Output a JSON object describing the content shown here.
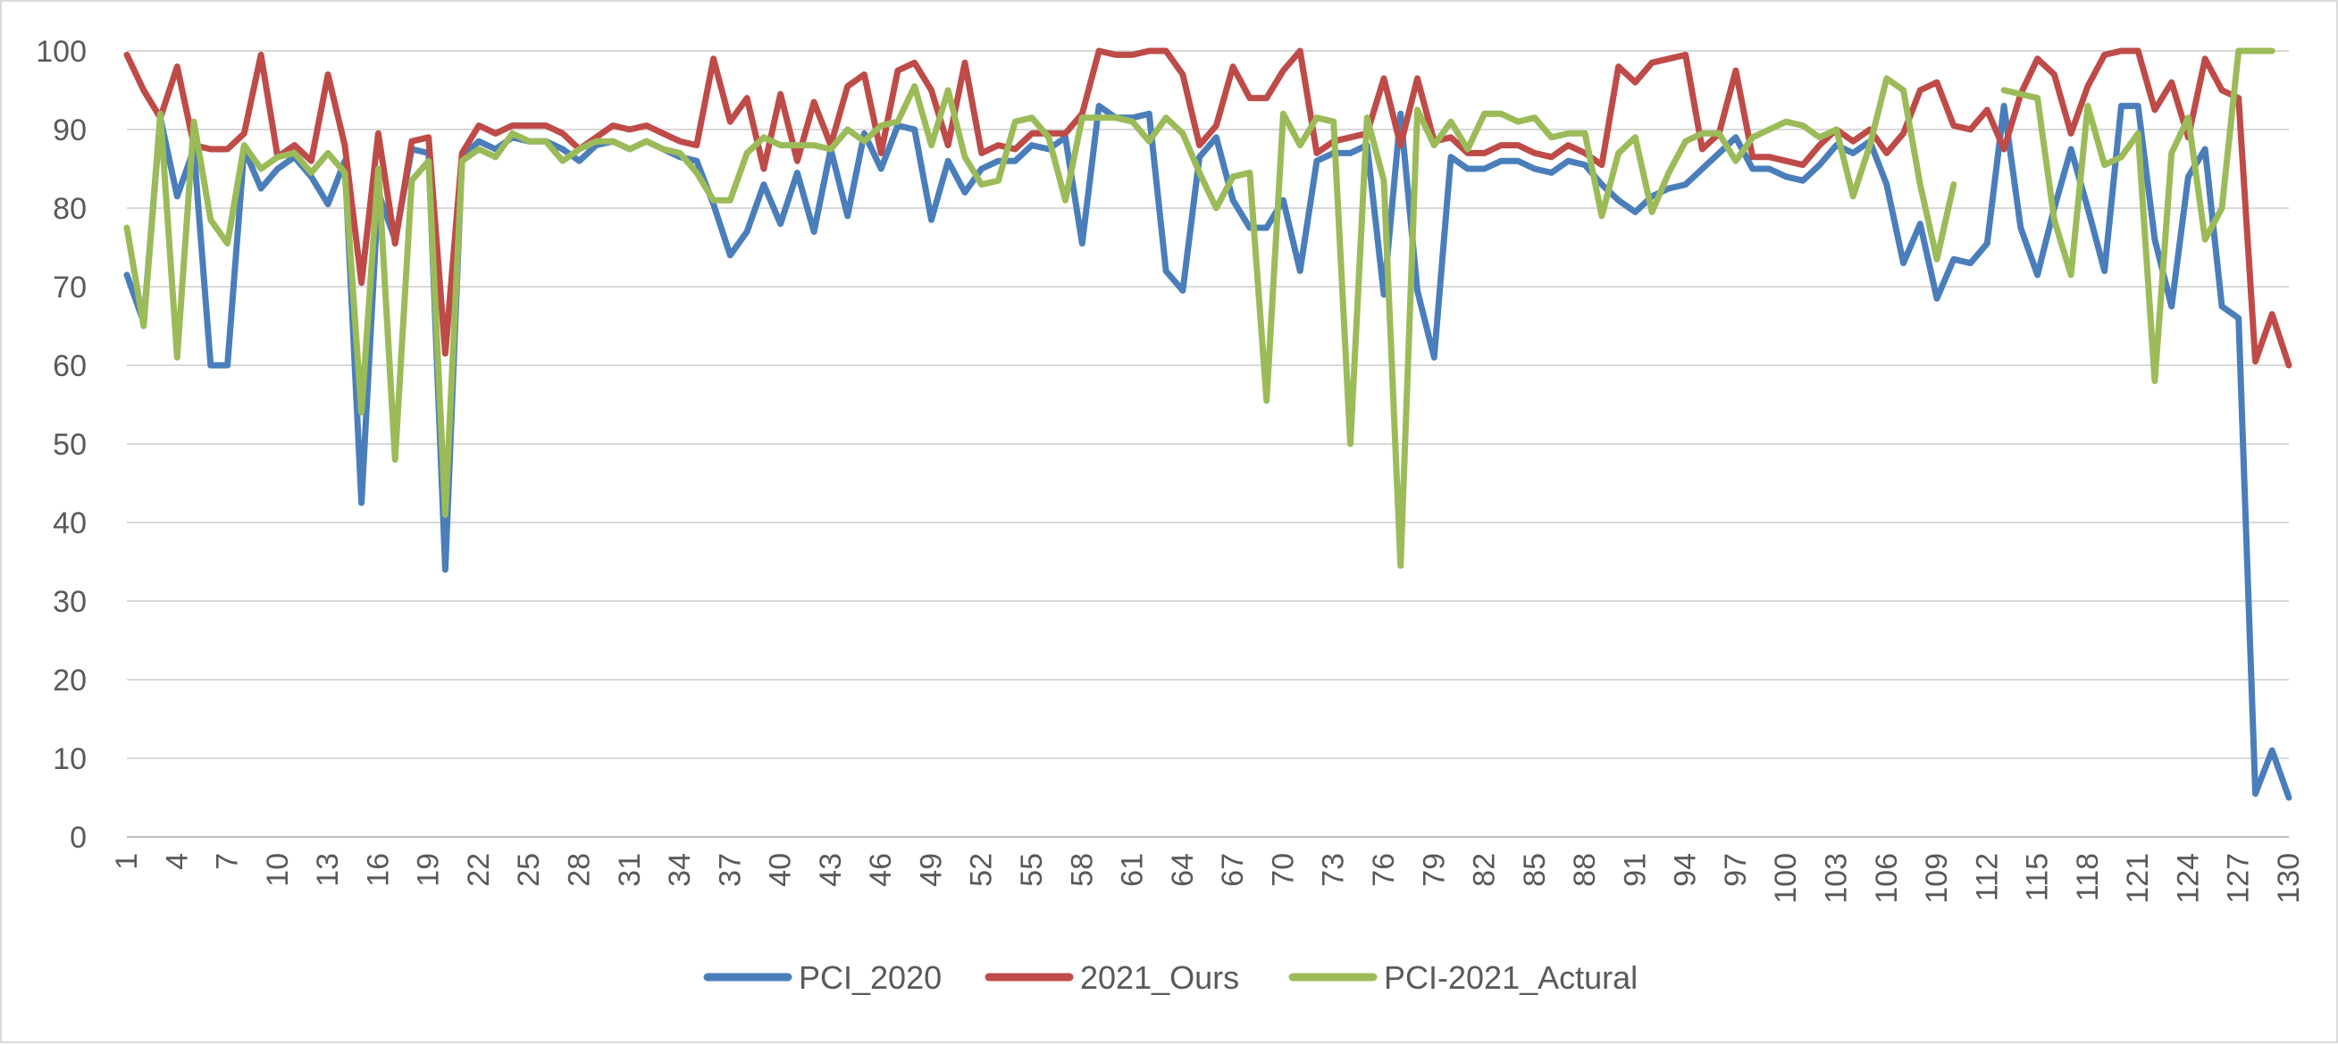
{
  "chart_data": {
    "type": "line",
    "title": "",
    "xlabel": "",
    "ylabel": "",
    "ylim": [
      0,
      100
    ],
    "yticks": [
      0,
      10,
      20,
      30,
      40,
      50,
      60,
      70,
      80,
      90,
      100
    ],
    "x_range": [
      1,
      130
    ],
    "x_tick_step": 3,
    "grid": "horizontal",
    "legend_position": "bottom",
    "colors": {
      "gridline": "#d9d9d9",
      "axis": "#bfbfbf",
      "text": "#595959"
    },
    "series": [
      {
        "name": "PCI_2020",
        "color": "#4a7ebb",
        "values": [
          71.5,
          65.5,
          91.5,
          81.5,
          87.5,
          60,
          60,
          87.5,
          82.5,
          85,
          86.5,
          84,
          80.5,
          86,
          42.5,
          82,
          76,
          87.5,
          87,
          34,
          86.5,
          88.5,
          87.5,
          89,
          88.5,
          88.5,
          87.5,
          86,
          88,
          88.5,
          87.5,
          88.5,
          87.5,
          86.5,
          86,
          80.5,
          74,
          77,
          83,
          78,
          84.5,
          77,
          87.5,
          79,
          89.5,
          85,
          90.5,
          90,
          78.5,
          86,
          82,
          85,
          86,
          86,
          88,
          87.5,
          89,
          75.5,
          93,
          91.5,
          91.5,
          92,
          72,
          69.5,
          86.5,
          89,
          81,
          77.5,
          77.5,
          81,
          72,
          86,
          87,
          87,
          88,
          69,
          92,
          69.5,
          61,
          86.5,
          85,
          85,
          86,
          86,
          85,
          84.5,
          86,
          85.5,
          83,
          81,
          79.5,
          81.5,
          82.5,
          83,
          85,
          87,
          89,
          85,
          85,
          84,
          83.5,
          85.5,
          88,
          87,
          88.5,
          83,
          73,
          78,
          68.5,
          73.5,
          73,
          75.5,
          93,
          77.5,
          71.5,
          80,
          87.5,
          80,
          72,
          93,
          93,
          76,
          67.5,
          84,
          87.5,
          67.5,
          66,
          5.5,
          11,
          5
        ]
      },
      {
        "name": "2021_Ours",
        "color": "#be4b48",
        "values": [
          99.5,
          95,
          91.5,
          98,
          88,
          87.5,
          87.5,
          89.5,
          99.5,
          86.5,
          88,
          86,
          97,
          88,
          70.5,
          89.5,
          75.5,
          88.5,
          89,
          61.5,
          87,
          90.5,
          89.5,
          90.5,
          90.5,
          90.5,
          89.5,
          87.5,
          89,
          90.5,
          90,
          90.5,
          89.5,
          88.5,
          88,
          99,
          91,
          94,
          85,
          94.5,
          86,
          93.5,
          88,
          95.5,
          97,
          87,
          97.5,
          98.5,
          95,
          88,
          98.5,
          87,
          88,
          87.5,
          89.5,
          89.5,
          89.5,
          92,
          100,
          99.5,
          99.5,
          100,
          100,
          97,
          88,
          90.5,
          98,
          94,
          94,
          97.5,
          100,
          87,
          88.5,
          89,
          89.5,
          96.5,
          88,
          96.5,
          88.5,
          89,
          87,
          87,
          88,
          88,
          87,
          86.5,
          88,
          87,
          85.5,
          98,
          96,
          98.5,
          99,
          99.5,
          87.5,
          89.5,
          97.5,
          86.5,
          86.5,
          86,
          85.5,
          88,
          90,
          88.5,
          90,
          87,
          89.5,
          95,
          96,
          90.5,
          90,
          92.5,
          87.5,
          94.5,
          99,
          97,
          89.5,
          95.5,
          99.5,
          100,
          100,
          92.5,
          96,
          89,
          99,
          95,
          94,
          60.5,
          66.5,
          60
        ]
      },
      {
        "name": "PCI-2021_Actural",
        "color": "#9bbb59",
        "values": [
          77.5,
          65,
          92,
          61,
          91,
          78.5,
          75.5,
          88,
          85,
          86.5,
          87,
          84.5,
          87,
          84.5,
          54,
          85,
          48,
          83.5,
          86,
          41,
          86,
          87.5,
          86.5,
          89.5,
          88.5,
          88.5,
          86,
          87.5,
          88.5,
          88.5,
          87.5,
          88.5,
          87.5,
          87,
          84.5,
          81,
          81,
          87,
          89,
          88,
          88,
          88,
          87.5,
          90,
          88.5,
          90.5,
          91,
          95.5,
          88,
          95,
          86.5,
          83,
          83.5,
          91,
          91.5,
          89,
          81,
          91.5,
          91.5,
          91.5,
          91,
          88.5,
          91.5,
          89.5,
          84.5,
          80,
          84,
          84.5,
          55.5,
          92,
          88,
          91.5,
          91,
          50,
          91.5,
          83.5,
          34.5,
          92.5,
          88,
          91,
          87.5,
          92,
          92,
          91,
          91.5,
          89,
          89.5,
          89.5,
          79,
          87,
          89,
          79.5,
          84.5,
          88.5,
          89.5,
          89.5,
          86,
          89,
          90,
          91,
          90.5,
          89,
          90,
          81.5,
          88,
          96.5,
          95,
          83,
          73.5,
          83,
          null,
          null,
          95,
          94.5,
          94,
          78.5,
          71.5,
          93,
          85.5,
          86.5,
          89.5,
          58,
          87,
          91.5,
          76,
          80,
          100,
          100,
          100
        ]
      }
    ]
  }
}
